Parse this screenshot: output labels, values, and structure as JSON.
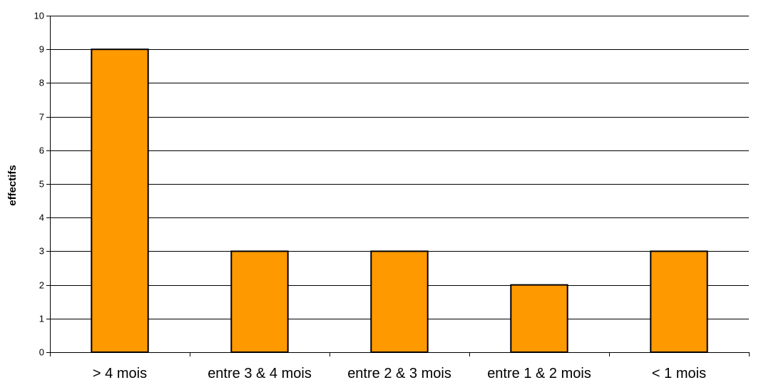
{
  "chart_data": {
    "type": "bar",
    "categories": [
      "> 4 mois",
      "entre 3 & 4 mois",
      "entre 2 & 3 mois",
      "entre 1 & 2 mois",
      "< 1 mois"
    ],
    "values": [
      9,
      3,
      3,
      2,
      3
    ],
    "title": "",
    "xlabel": "",
    "ylabel": "effectifs",
    "ylim": [
      0,
      10
    ],
    "yticks": [
      0,
      1,
      2,
      3,
      4,
      5,
      6,
      7,
      8,
      9,
      10
    ],
    "grid": true,
    "legend": "none",
    "bar_color": "#FF9900",
    "bar_outline": "#000000"
  }
}
